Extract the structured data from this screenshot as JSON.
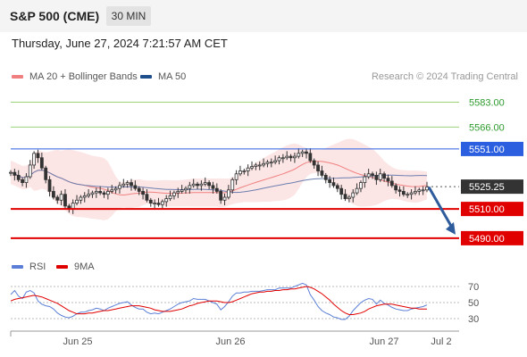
{
  "header": {
    "title": "S&P 500 (CME)",
    "timeframe": "30 MIN",
    "datetime": "Thursday, June 27, 2024 7:21:57 AM CET",
    "credit": "Research © 2024 Trading Central"
  },
  "legend_main": [
    {
      "label": "MA 20 + Bollinger Bands",
      "color": "#f08080"
    },
    {
      "label": "MA 50",
      "color": "#1f4e8c"
    }
  ],
  "legend_rsi": [
    {
      "label": "RSI",
      "color": "#5b7fd6"
    },
    {
      "label": "9MA",
      "color": "#e00000"
    }
  ],
  "chart_data": [
    {
      "type": "candlestick",
      "yrange": [
        5482,
        5590
      ],
      "x_ticks": [
        "Jun 25",
        "Jun 26",
        "Jun 27",
        "Jul 2"
      ],
      "levels": [
        {
          "value": 5583.0,
          "label": "5583.00",
          "kind": "resistance-green"
        },
        {
          "value": 5566.0,
          "label": "5566.00",
          "kind": "resistance-green"
        },
        {
          "value": 5551.0,
          "label": "5551.00",
          "kind": "pivot-blue"
        },
        {
          "value": 5525.25,
          "label": "5525.25",
          "kind": "last-price"
        },
        {
          "value": 5510.0,
          "label": "5510.00",
          "kind": "support-red"
        },
        {
          "value": 5490.0,
          "label": "5490.00",
          "kind": "support-red"
        }
      ],
      "candles_close": [
        5535,
        5533,
        5530,
        5528,
        5532,
        5540,
        5548,
        5545,
        5538,
        5530,
        5522,
        5518,
        5516,
        5520,
        5512,
        5510,
        5514,
        5516,
        5518,
        5519,
        5520,
        5521,
        5522,
        5521,
        5520,
        5522,
        5523,
        5524,
        5526,
        5527,
        5528,
        5526,
        5524,
        5522,
        5520,
        5516,
        5514,
        5514,
        5513,
        5515,
        5517,
        5519,
        5521,
        5522,
        5523,
        5524,
        5526,
        5527,
        5526,
        5527,
        5528,
        5526,
        5524,
        5522,
        5516,
        5518,
        5523,
        5530,
        5534,
        5536,
        5536,
        5538,
        5539,
        5540,
        5540,
        5541,
        5542,
        5542,
        5543,
        5545,
        5545,
        5546,
        5545,
        5546,
        5548,
        5549,
        5548,
        5543,
        5540,
        5536,
        5533,
        5530,
        5528,
        5526,
        5524,
        5520,
        5517,
        5518,
        5521,
        5524,
        5528,
        5532,
        5534,
        5533,
        5530,
        5534,
        5531,
        5529,
        5526,
        5523,
        5522,
        5520,
        5520,
        5521,
        5522,
        5523,
        5523,
        5525
      ]
    },
    {
      "type": "line",
      "name": "RSI",
      "yrange": [
        20,
        80
      ],
      "y_ticks": [
        30,
        50,
        70
      ],
      "series": [
        {
          "name": "RSI",
          "values": [
            60,
            65,
            58,
            55,
            63,
            65,
            62,
            52,
            48,
            46,
            45,
            42,
            37,
            34,
            32,
            31,
            33,
            36,
            38,
            38,
            40,
            41,
            43,
            42,
            40,
            43,
            45,
            47,
            49,
            50,
            51,
            47,
            44,
            42,
            42,
            38,
            36,
            37,
            36,
            38,
            40,
            42,
            45,
            48,
            50,
            51,
            52,
            55,
            54,
            54,
            54,
            52,
            50,
            48,
            41,
            45,
            51,
            58,
            62,
            62,
            63,
            63,
            64,
            64,
            64,
            65,
            66,
            66,
            66,
            68,
            68,
            68,
            68,
            70,
            72,
            74,
            72,
            60,
            53,
            45,
            40,
            37,
            35,
            32,
            31,
            29,
            29,
            33,
            40,
            45,
            50,
            53,
            55,
            54,
            48,
            53,
            49,
            47,
            44,
            42,
            41,
            40,
            40,
            42,
            43,
            44,
            45,
            47
          ]
        },
        {
          "name": "9MA",
          "values": [
            52,
            54,
            55,
            56,
            57,
            58,
            59,
            58,
            57,
            55,
            53,
            51,
            49,
            46,
            43,
            40,
            38,
            36,
            36,
            36,
            37,
            37,
            38,
            39,
            40,
            40,
            41,
            42,
            43,
            44,
            45,
            46,
            46,
            46,
            45,
            44,
            43,
            41,
            40,
            39,
            39,
            39,
            40,
            41,
            42,
            44,
            46,
            47,
            49,
            50,
            51,
            52,
            52,
            52,
            51,
            50,
            50,
            51,
            53,
            55,
            57,
            59,
            61,
            62,
            63,
            63,
            64,
            64,
            65,
            65,
            66,
            66,
            67,
            67,
            68,
            69,
            70,
            69,
            67,
            64,
            61,
            57,
            53,
            48,
            44,
            40,
            37,
            35,
            35,
            36,
            37,
            39,
            42,
            44,
            46,
            47,
            48,
            48,
            48,
            47,
            46,
            45,
            44,
            43,
            43,
            42,
            42,
            42
          ]
        }
      ]
    }
  ]
}
